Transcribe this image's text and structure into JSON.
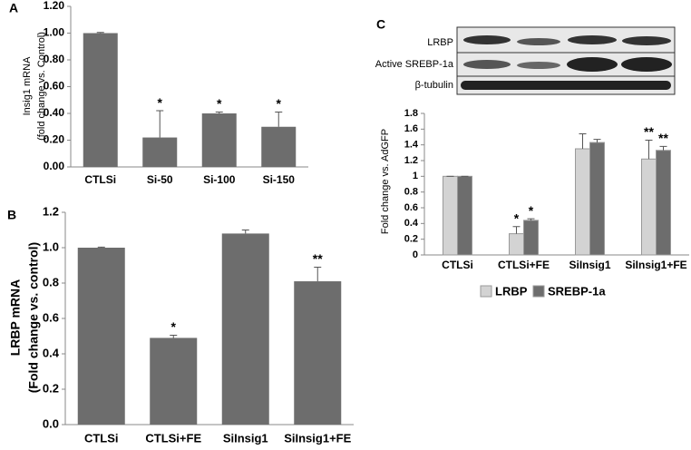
{
  "chart_data": [
    {
      "type": "bar",
      "panel_label": "A",
      "y_label": [
        "Insig1 mRNA",
        "(fold change vs. Control)"
      ],
      "categories": [
        "CTLSi",
        "Si-50",
        "Si-100",
        "Si-150"
      ],
      "values": [
        1.0,
        0.22,
        0.4,
        0.3
      ],
      "errors": [
        0.005,
        0.2,
        0.01,
        0.11
      ],
      "annotations": [
        null,
        "*",
        "*",
        "*"
      ],
      "color": "#6d6d6d",
      "ylim": [
        0,
        1.2
      ],
      "yticks": [
        {
          "value": 0,
          "label": "0.00"
        },
        {
          "value": 0.2,
          "label": "0.20"
        },
        {
          "value": 0.4,
          "label": "0.40"
        },
        {
          "value": 0.6,
          "label": "0.60"
        },
        {
          "value": 0.8,
          "label": "0.80"
        },
        {
          "value": 1,
          "label": "1.00"
        },
        {
          "value": 1.2,
          "label": "1.20"
        }
      ]
    },
    {
      "type": "bar",
      "panel_label": "B",
      "y_label": [
        "LRBP mRNA",
        "(Fold change vs. control)"
      ],
      "categories": [
        "CTLSi",
        "CTLSi+FE",
        "SiInsig1",
        "SiInsig1+FE"
      ],
      "values": [
        1.0,
        0.49,
        1.08,
        0.81
      ],
      "errors": [
        0.003,
        0.015,
        0.02,
        0.08
      ],
      "annotations": [
        null,
        "*",
        null,
        "**"
      ],
      "color": "#6d6d6d",
      "ylim": [
        0,
        1.2
      ],
      "yticks": [
        {
          "value": 0,
          "label": "0.0"
        },
        0.2,
        0.4,
        0.6,
        0.8,
        {
          "value": 1,
          "label": "1.0"
        },
        1.2
      ]
    },
    {
      "type": "bar",
      "panel_label": "C",
      "y_label": [
        "Fold change vs. AdGFP"
      ],
      "blot_labels": [
        "LRBP",
        "Active SREBP-1a",
        "β-tubulin"
      ],
      "categories": [
        "CTLSi",
        "CTLSi+FE",
        "SiInsig1",
        "SiInsig1+FE"
      ],
      "series": [
        {
          "name": "LRBP",
          "color": "#d3d3d3",
          "values": [
            1.0,
            0.27,
            1.35,
            1.22
          ],
          "errors": [
            0,
            0.09,
            0.19,
            0.24
          ],
          "annotations": [
            null,
            "*",
            null,
            "**"
          ]
        },
        {
          "name": "SREBP-1a",
          "color": "#6d6d6d",
          "values": [
            1.0,
            0.44,
            1.43,
            1.33
          ],
          "errors": [
            0,
            0.02,
            0.04,
            0.05
          ],
          "annotations": [
            null,
            "*",
            null,
            "**"
          ]
        }
      ],
      "ylim": [
        0,
        1.8
      ],
      "yticks": [
        0,
        0.2,
        0.4,
        0.6,
        0.8,
        1,
        1.2,
        1.4,
        1.6,
        1.8
      ]
    }
  ]
}
